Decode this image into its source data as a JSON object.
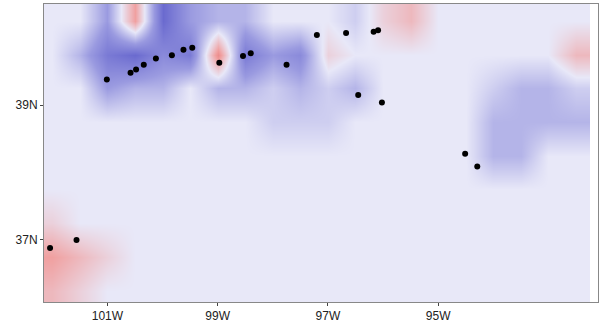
{
  "chart_data": {
    "type": "heatmap",
    "x": [
      -102,
      -101.5,
      -101,
      -100.5,
      -100,
      -99.5,
      -99,
      -98.5,
      -98,
      -97.5,
      -97,
      -96.5,
      -96,
      -95.5,
      -95,
      -94.5,
      -94,
      -93.5,
      -93,
      -92.5
    ],
    "y": [
      36.25,
      36.75,
      37.25,
      37.75,
      38.25,
      38.75,
      39.25,
      39.75,
      40.25
    ],
    "z": [
      [
        0.2,
        0.1,
        0,
        0,
        0,
        0,
        0,
        0,
        0,
        0,
        0,
        0,
        0,
        0,
        0,
        0,
        0,
        0,
        0,
        0
      ],
      [
        0.3,
        0.2,
        0.1,
        0,
        0,
        0,
        0,
        0,
        0,
        0,
        0,
        0,
        0,
        0,
        0,
        0,
        0,
        0,
        0,
        0
      ],
      [
        0.1,
        0,
        0,
        0,
        0,
        0,
        0,
        0,
        0,
        0,
        0,
        0,
        0,
        0,
        0,
        0,
        0,
        0,
        0,
        0
      ],
      [
        0,
        0,
        0,
        0,
        0,
        0,
        0,
        0,
        0,
        0,
        0,
        0,
        0,
        0,
        0,
        0,
        0,
        0,
        0,
        0
      ],
      [
        0,
        0,
        0,
        0,
        0,
        0,
        0,
        0,
        0,
        0,
        0,
        0,
        0,
        0,
        0,
        0,
        -0.2,
        -0.2,
        0,
        0
      ],
      [
        0,
        0,
        0,
        0,
        0,
        0,
        0,
        0,
        -0.1,
        -0.1,
        -0.1,
        0,
        0,
        0,
        0,
        0,
        -0.2,
        -0.2,
        -0.2,
        -0.2
      ],
      [
        0,
        0,
        -0.3,
        -0.2,
        -0.2,
        0,
        -0.2,
        -0.2,
        -0.1,
        -0.2,
        -0.1,
        -0.2,
        0,
        0,
        0,
        0,
        -0.1,
        -0.2,
        -0.2,
        -0.1
      ],
      [
        0,
        -0.2,
        -0.5,
        -0.6,
        -0.4,
        -0.5,
        0.4,
        -0.5,
        -0.3,
        -0.4,
        0.1,
        0,
        0,
        0,
        0,
        0,
        0,
        0,
        0,
        0.2
      ],
      [
        0,
        0,
        -0.3,
        0.3,
        -0.6,
        -0.3,
        -0.2,
        -0.2,
        0,
        0,
        0,
        -0.1,
        0.1,
        0.2,
        0,
        0,
        0,
        0,
        0,
        0
      ]
    ],
    "zlim": [
      -1,
      1
    ],
    "overlay": {
      "type": "scatter",
      "color": "#000000",
      "marker": "circle",
      "x": [
        -101.01,
        -100.58,
        -100.48,
        -100.34,
        -100.12,
        -99.83,
        -99.62,
        -99.46,
        -98.97,
        -98.54,
        -98.4,
        -97.75,
        -97.2,
        -96.67,
        -96.17,
        -96.09,
        -96.45,
        -96.02,
        -94.51,
        -94.29,
        -102.04,
        -101.56
      ],
      "y": [
        39.38,
        39.48,
        39.53,
        39.6,
        39.69,
        39.74,
        39.82,
        39.85,
        39.63,
        39.73,
        39.77,
        39.6,
        40.04,
        40.07,
        40.09,
        40.11,
        39.15,
        39.04,
        38.28,
        38.09,
        36.88,
        37.0
      ]
    },
    "xlim": [
      -102.15,
      -92.1
    ],
    "ylim": [
      36.08,
      40.5
    ],
    "xticks": [
      {
        "value": -101,
        "label": "101W"
      },
      {
        "value": -99,
        "label": "99W"
      },
      {
        "value": -97,
        "label": "97W"
      },
      {
        "value": -95,
        "label": "95W"
      }
    ],
    "yticks": [
      {
        "value": 37,
        "label": "37N"
      },
      {
        "value": 39,
        "label": "39N"
      }
    ],
    "grid": false
  }
}
